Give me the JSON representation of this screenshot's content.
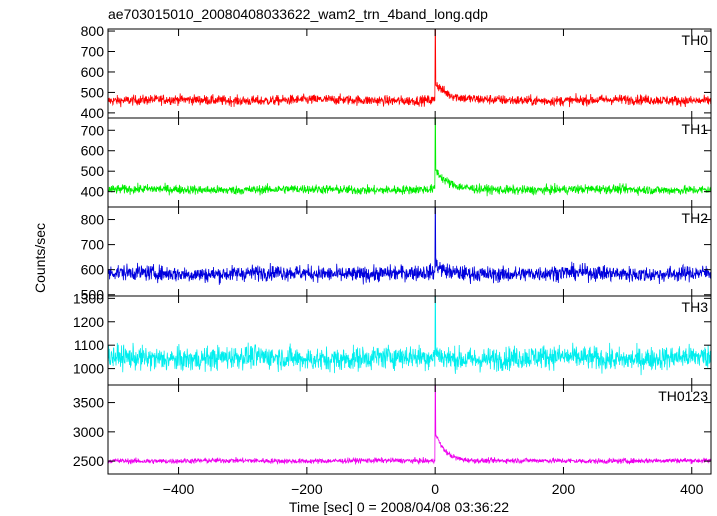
{
  "chart_data": {
    "type": "line",
    "title": "ae703015010_20080408033622_wam2_trn_4band_long.qdp",
    "xlabel": "Time [sec] 0 = 2008/04/08 03:36:22",
    "ylabel": "Counts/sec",
    "xlim": [
      -510,
      430
    ],
    "xticks": [
      -400,
      -200,
      0,
      200,
      400
    ],
    "xtick_labels": [
      "−400",
      "−200",
      "0",
      "200",
      "400"
    ],
    "grid": false,
    "legend": "none",
    "panels": [
      {
        "name": "TH0",
        "color": "#ff0000",
        "ylim": [
          375,
          810
        ],
        "yticks": [
          400,
          500,
          600,
          700,
          800
        ],
        "ytick_labels": [
          "400",
          "500",
          "600",
          "700",
          "800"
        ],
        "baseline": 462,
        "noise": 22,
        "peak": 810,
        "tail_amp": 90,
        "tail_tau": 18
      },
      {
        "name": "TH1",
        "color": "#00ee00",
        "ylim": [
          325,
          760
        ],
        "yticks": [
          400,
          500,
          600,
          700
        ],
        "ytick_labels": [
          "400",
          "500",
          "600",
          "700"
        ],
        "baseline": 410,
        "noise": 20,
        "peak": 760,
        "tail_amp": 100,
        "tail_tau": 18
      },
      {
        "name": "TH2",
        "color": "#0000dd",
        "ylim": [
          495,
          850
        ],
        "yticks": [
          500,
          600,
          700,
          800
        ],
        "ytick_labels": [
          "500",
          "600",
          "700",
          "800"
        ],
        "baseline": 585,
        "noise": 28,
        "peak": 850,
        "tail_amp": 40,
        "tail_tau": 10
      },
      {
        "name": "TH3",
        "color": "#00eeee",
        "ylim": [
          930,
          1310
        ],
        "yticks": [
          1000,
          1100,
          1200,
          1300
        ],
        "ytick_labels": [
          "1000",
          "1100",
          "1200",
          "1300"
        ],
        "baseline": 1045,
        "noise": 45,
        "peak": 1310,
        "tail_amp": 30,
        "tail_tau": 8
      },
      {
        "name": "TH0123",
        "color": "#ee00ee",
        "ylim": [
          2280,
          3800
        ],
        "yticks": [
          2500,
          3000,
          3500
        ],
        "ytick_labels": [
          "2500",
          "3000",
          "3500"
        ],
        "baseline": 2505,
        "noise": 40,
        "peak": 3800,
        "tail_amp": 500,
        "tail_tau": 15
      }
    ],
    "x_start": -510,
    "x_end": 430,
    "x_step": 0.5,
    "trigger_time": 0
  }
}
